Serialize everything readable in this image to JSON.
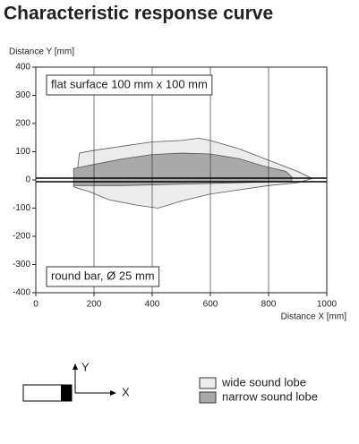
{
  "chart_data": {
    "type": "area",
    "title": "Characteristic response curve",
    "y_label": "Distance Y [mm]",
    "x_label": "Distance X [mm]",
    "xlim": [
      0,
      1000
    ],
    "xticks": [
      0,
      200,
      400,
      600,
      800,
      1000
    ],
    "ylim": [
      -400,
      400
    ],
    "yticks": [
      -400,
      -300,
      -200,
      -100,
      0,
      100,
      200,
      300,
      400
    ],
    "grid": "x",
    "annotations": [
      "flat surface 100 mm x 100 mm",
      "round bar, Ø 25 mm",
      "Y",
      "X"
    ],
    "series": [
      {
        "name": "wide sound lobe",
        "color": "#ececec",
        "x": [
          150,
          200,
          300,
          400,
          500,
          560,
          600,
          700,
          800,
          850,
          900,
          950,
          900,
          800,
          700,
          600,
          500,
          420,
          350,
          250,
          180,
          130,
          140
        ],
        "values": [
          95,
          105,
          120,
          135,
          140,
          148,
          140,
          110,
          70,
          50,
          30,
          5,
          -10,
          -20,
          -35,
          -50,
          -75,
          -100,
          -90,
          -70,
          -40,
          -25,
          10
        ]
      },
      {
        "name": "narrow sound lobe",
        "color": "#a9a9a9",
        "x": [
          130,
          200,
          300,
          400,
          500,
          600,
          700,
          780,
          820,
          860,
          880,
          880,
          700,
          500,
          300,
          130
        ],
        "values": [
          40,
          55,
          75,
          90,
          95,
          92,
          75,
          50,
          40,
          30,
          10,
          -5,
          -10,
          -15,
          -20,
          -20
        ]
      }
    ]
  }
}
